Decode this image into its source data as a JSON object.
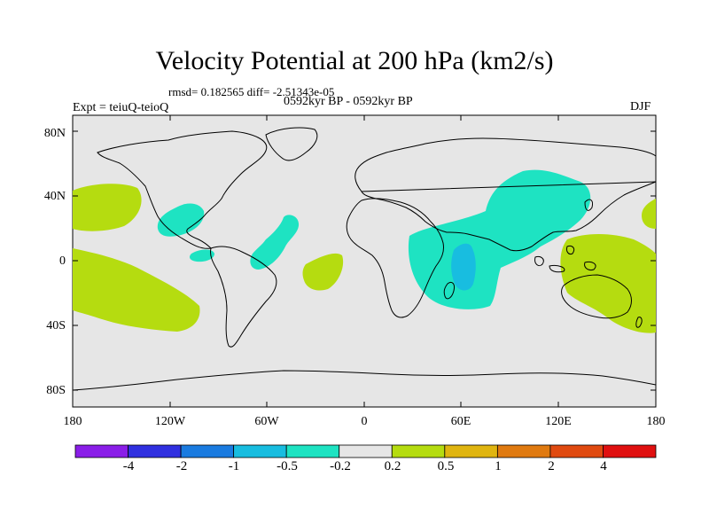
{
  "title": "Velocity Potential at 200 hPa (km2/s)",
  "stats": "rmsd= 0.182565 diff= -2.51343e-05",
  "experiment": "Expt = teiuQ-teioQ",
  "period": "0592kyr BP - 0592kyr BP",
  "season": "DJF",
  "lat_labels": [
    "80N",
    "40N",
    "0",
    "40S",
    "80S"
  ],
  "lon_labels": [
    "180",
    "120W",
    "60W",
    "0",
    "60E",
    "120E",
    "180"
  ],
  "colorbar": {
    "colors": [
      "#8a1ee8",
      "#3030e0",
      "#1a7be0",
      "#18bde0",
      "#1ee3c2",
      "#e6e6e6",
      "#b5dc10",
      "#e0b510",
      "#e07a10",
      "#e04a10",
      "#e01010"
    ],
    "labels": [
      "-4",
      "-2",
      "-1",
      "-0.5",
      "-0.2",
      "0.2",
      "0.5",
      "1",
      "2",
      "4"
    ]
  },
  "colors": {
    "background": "#e6e6e6",
    "negative": "#1ee3c2",
    "negative_strong": "#18bde0",
    "positive": "#b5dc10"
  }
}
